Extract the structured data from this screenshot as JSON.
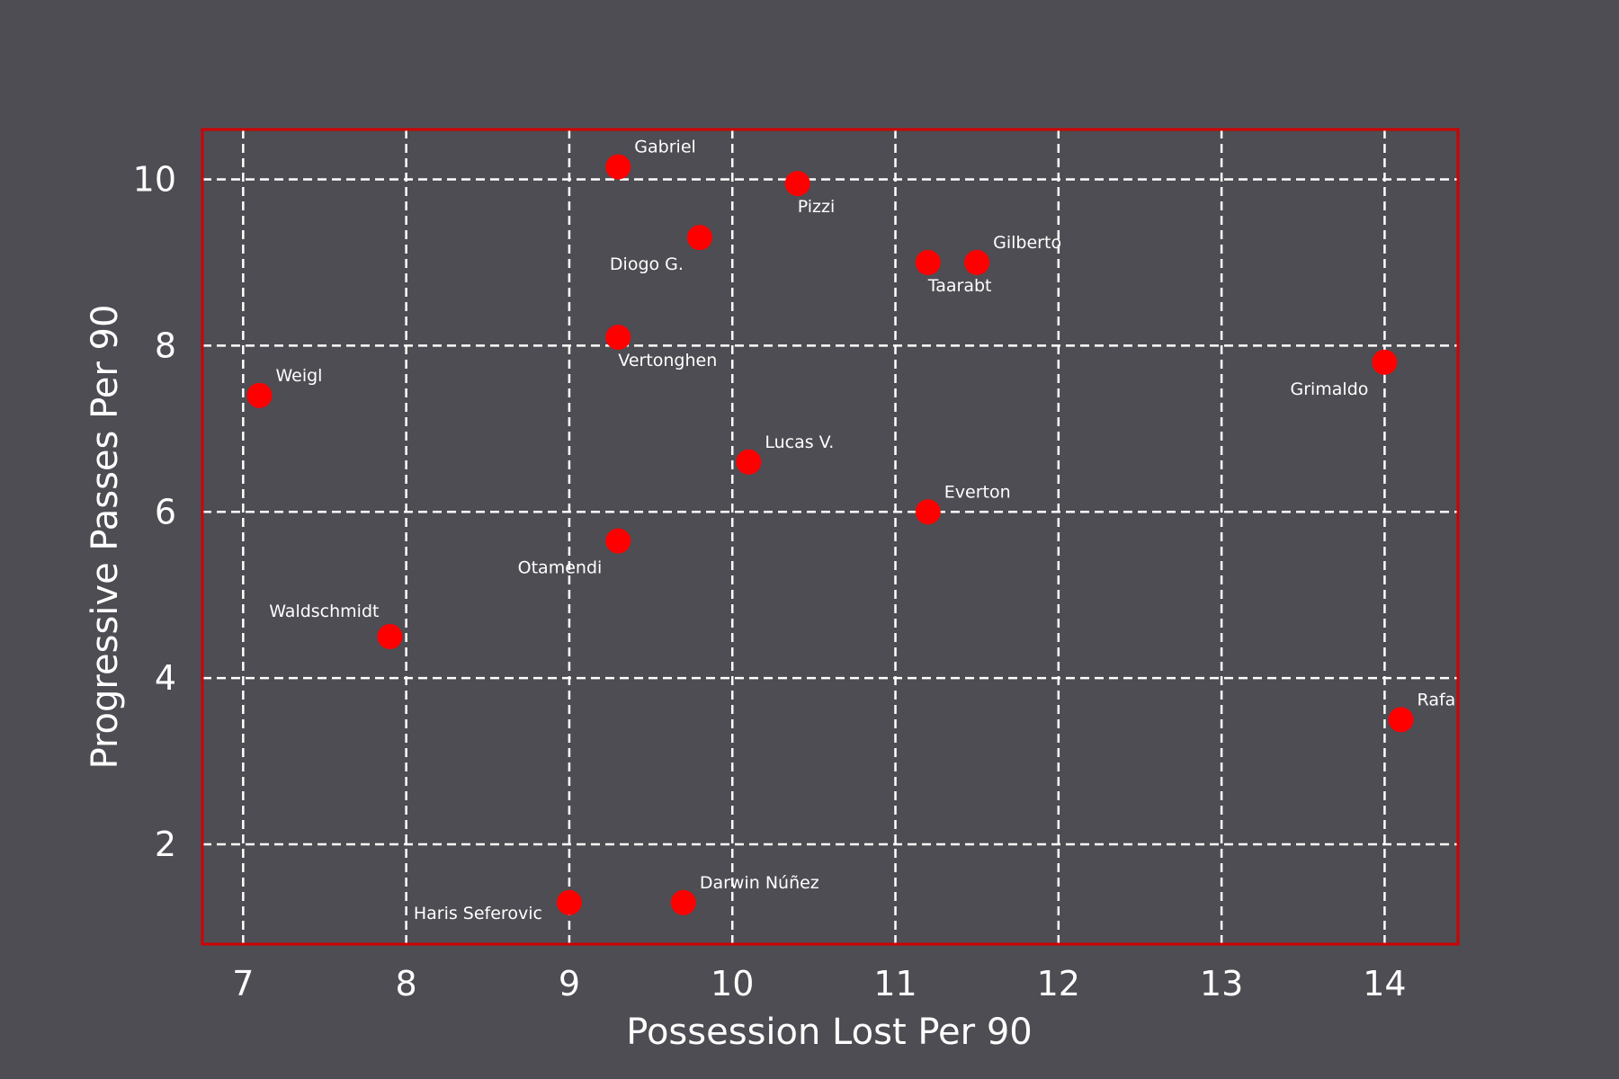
{
  "chart_data": {
    "type": "scatter",
    "title": "",
    "xlabel": "Possession Lost Per 90",
    "ylabel": "Progressive Passes Per 90",
    "xlim": [
      6.75,
      14.45
    ],
    "ylim": [
      0.8,
      10.6
    ],
    "x_ticks": [
      "7",
      "8",
      "9",
      "10",
      "11",
      "12",
      "13",
      "14"
    ],
    "y_ticks": [
      "2",
      "4",
      "6",
      "8",
      "10"
    ],
    "grid": true,
    "colors": {
      "background": "#4e4d53",
      "marker": "#ff0000",
      "frame": "#d00000",
      "grid": "#ffffff",
      "text": "#ffffff"
    },
    "points": [
      {
        "label": "Gabriel",
        "x": 9.3,
        "y": 10.15,
        "label_pos": "above-right"
      },
      {
        "label": "Pizzi",
        "x": 10.4,
        "y": 9.95,
        "label_pos": "below-right"
      },
      {
        "label": "Diogo G.",
        "x": 9.8,
        "y": 9.3,
        "label_pos": "below-left"
      },
      {
        "label": "Taarabt",
        "x": 11.2,
        "y": 9.0,
        "label_pos": "below-right"
      },
      {
        "label": "Gilberto",
        "x": 11.5,
        "y": 9.0,
        "label_pos": "above-right"
      },
      {
        "label": "Vertonghen",
        "x": 9.3,
        "y": 8.1,
        "label_pos": "below-right"
      },
      {
        "label": "Grimaldo",
        "x": 14.0,
        "y": 7.8,
        "label_pos": "below-left"
      },
      {
        "label": "Weigl",
        "x": 7.1,
        "y": 7.4,
        "label_pos": "above-right"
      },
      {
        "label": "Lucas V.",
        "x": 10.1,
        "y": 6.6,
        "label_pos": "above-right"
      },
      {
        "label": "Everton",
        "x": 11.2,
        "y": 6.0,
        "label_pos": "above-right"
      },
      {
        "label": "Otamendi",
        "x": 9.3,
        "y": 5.65,
        "label_pos": "below-left"
      },
      {
        "label": "Waldschmidt",
        "x": 7.9,
        "y": 4.5,
        "label_pos": "above-left"
      },
      {
        "label": "Rafa",
        "x": 14.1,
        "y": 3.5,
        "label_pos": "above-right"
      },
      {
        "label": "Haris Seferovic",
        "x": 9.0,
        "y": 1.3,
        "label_pos": "left"
      },
      {
        "label": "Darwin Núñez",
        "x": 9.7,
        "y": 1.3,
        "label_pos": "above-right"
      }
    ]
  }
}
